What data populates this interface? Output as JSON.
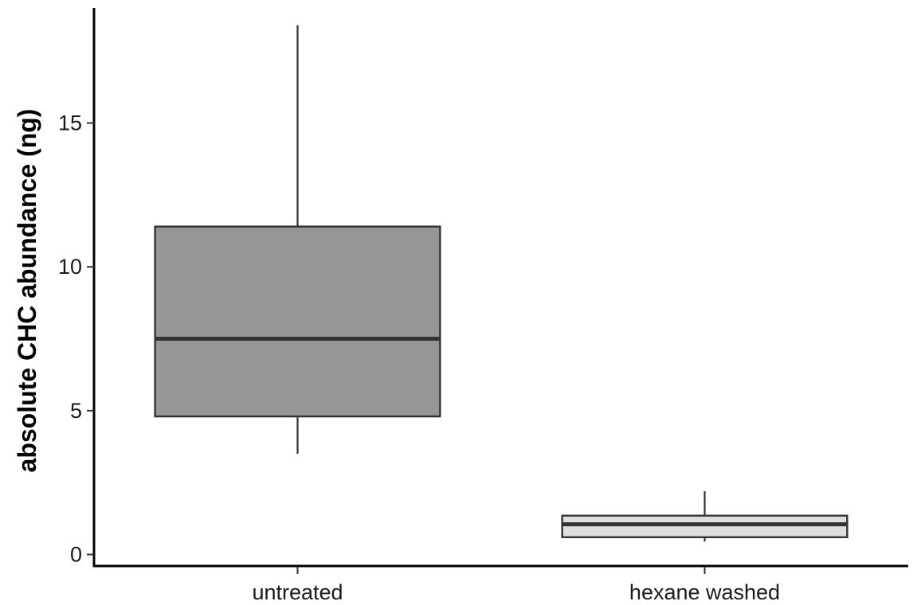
{
  "chart_data": {
    "type": "box",
    "title": "",
    "xlabel": "",
    "ylabel": "absolute CHC abundance (ng)",
    "ylim": [
      -0.4,
      19
    ],
    "y_ticks": [
      0,
      5,
      10,
      15
    ],
    "y_tick_labels": [
      "0",
      "5",
      "10",
      "15"
    ],
    "grid": false,
    "legend": "none",
    "categories": [
      "untreated",
      "hexane washed"
    ],
    "boxes": [
      {
        "category": "untreated",
        "whisker_low": 3.5,
        "q1": 4.8,
        "median": 7.5,
        "q3": 11.4,
        "whisker_high": 18.4,
        "fill": "#969696"
      },
      {
        "category": "hexane washed",
        "whisker_low": 0.45,
        "q1": 0.6,
        "median": 1.05,
        "q3": 1.35,
        "whisker_high": 2.2,
        "fill": "#dedede"
      }
    ],
    "colors": {
      "outline": "#333333",
      "axis": "#000000"
    }
  }
}
